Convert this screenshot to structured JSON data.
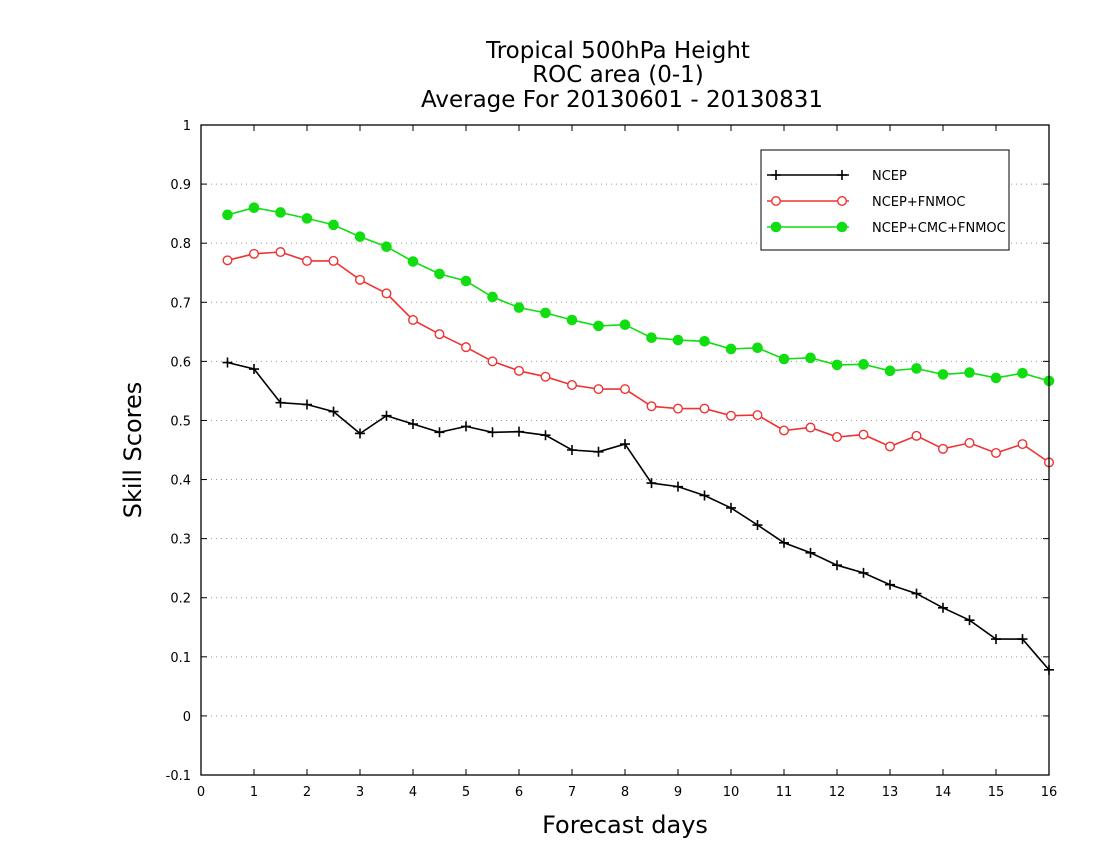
{
  "chart_data": {
    "type": "line",
    "title_lines": [
      "Tropical 500hPa Height",
      "ROC area (0-1)",
      "Average For 20130601 - 20130831"
    ],
    "xlabel": "Forecast days",
    "ylabel": "Skill Scores",
    "xlim": [
      0,
      16
    ],
    "ylim": [
      -0.1,
      1
    ],
    "x_ticks": [
      0,
      1,
      2,
      3,
      4,
      5,
      6,
      7,
      8,
      9,
      10,
      11,
      12,
      13,
      14,
      15,
      16
    ],
    "x_tick_labels": [
      "0",
      "1",
      "2",
      "3",
      "4",
      "5",
      "6",
      "7",
      "8",
      "9",
      "10",
      "11",
      "12",
      "13",
      "14",
      "15",
      "16"
    ],
    "y_ticks": [
      -0.1,
      0,
      0.1,
      0.2,
      0.3,
      0.4,
      0.5,
      0.6,
      0.7,
      0.8,
      0.9,
      1
    ],
    "y_tick_labels": [
      "-0.1",
      "0",
      "0.1",
      "0.2",
      "0.3",
      "0.4",
      "0.5",
      "0.6",
      "0.7",
      "0.8",
      "0.9",
      "1"
    ],
    "grid": "horizontal dotted",
    "legend_position": "top-right",
    "x": [
      0.5,
      1.0,
      1.5,
      2.0,
      2.5,
      3.0,
      3.5,
      4.0,
      4.5,
      5.0,
      5.5,
      6.0,
      6.5,
      7.0,
      7.5,
      8.0,
      8.5,
      9.0,
      9.5,
      10.0,
      10.5,
      11.0,
      11.5,
      12.0,
      12.5,
      13.0,
      13.5,
      14.0,
      14.5,
      15.0,
      15.5,
      16.0
    ],
    "series": [
      {
        "name": "NCEP",
        "color": "#000000",
        "marker": "plus",
        "values": [
          0.598,
          0.587,
          0.53,
          0.527,
          0.515,
          0.478,
          0.508,
          0.494,
          0.48,
          0.49,
          0.48,
          0.481,
          0.475,
          0.45,
          0.447,
          0.46,
          0.394,
          0.388,
          0.373,
          0.352,
          0.323,
          0.293,
          0.276,
          0.255,
          0.242,
          0.222,
          0.207,
          0.183,
          0.162,
          0.13,
          0.13,
          0.078
        ]
      },
      {
        "name": "NCEP+FNMOC",
        "color": "#ee3333",
        "marker": "open-circle",
        "values": [
          0.771,
          0.782,
          0.785,
          0.77,
          0.77,
          0.738,
          0.715,
          0.67,
          0.646,
          0.624,
          0.6,
          0.584,
          0.574,
          0.56,
          0.553,
          0.553,
          0.524,
          0.52,
          0.52,
          0.508,
          0.509,
          0.483,
          0.488,
          0.472,
          0.476,
          0.456,
          0.474,
          0.452,
          0.462,
          0.445,
          0.46,
          0.429
        ]
      },
      {
        "name": "NCEP+CMC+FNMOC",
        "color": "#11dd11",
        "marker": "filled-circle",
        "values": [
          0.848,
          0.86,
          0.852,
          0.842,
          0.831,
          0.811,
          0.794,
          0.769,
          0.748,
          0.736,
          0.709,
          0.691,
          0.682,
          0.67,
          0.66,
          0.662,
          0.64,
          0.636,
          0.634,
          0.621,
          0.623,
          0.604,
          0.606,
          0.594,
          0.595,
          0.584,
          0.588,
          0.578,
          0.581,
          0.572,
          0.58,
          0.567
        ]
      }
    ]
  }
}
